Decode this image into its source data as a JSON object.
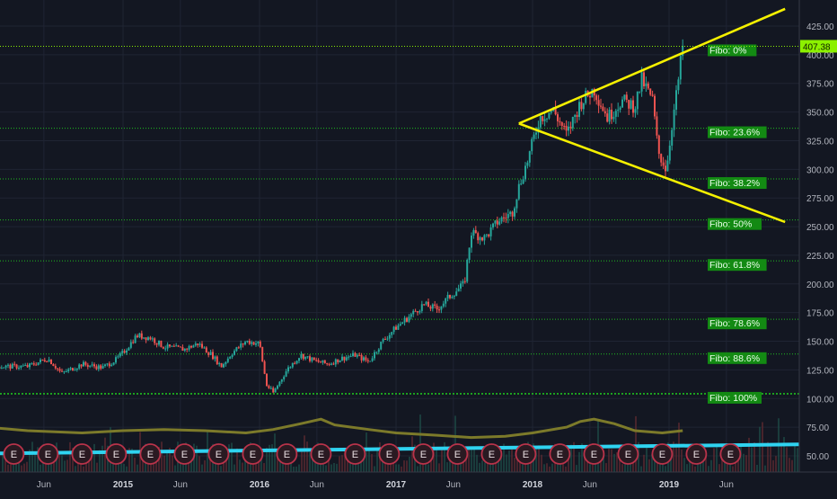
{
  "chart_data": {
    "type": "candlestick",
    "title": "",
    "xlabel": "",
    "ylabel": "",
    "x_tick_labels": [
      "Jun",
      "2015",
      "Jun",
      "2016",
      "Jun",
      "2017",
      "Jun",
      "2018",
      "Jun",
      "2019",
      "Jun"
    ],
    "y_tick_labels": [
      "425.00",
      "400.00",
      "375.00",
      "350.00",
      "325.00",
      "300.00",
      "275.00",
      "250.00",
      "225.00",
      "200.00",
      "175.00",
      "150.00",
      "125.00",
      "100.00",
      "75.00",
      "50.00"
    ],
    "ylim": [
      40,
      440
    ],
    "last_price_label": "407.38",
    "last_price": 407.38,
    "price_series": [
      [
        2014.3,
        128
      ],
      [
        2014.45,
        135
      ],
      [
        2014.55,
        122
      ],
      [
        2014.7,
        130
      ],
      [
        2014.85,
        127
      ],
      [
        2014.95,
        134
      ],
      [
        2015.0,
        140
      ],
      [
        2015.1,
        155
      ],
      [
        2015.2,
        153
      ],
      [
        2015.3,
        145
      ],
      [
        2015.45,
        143
      ],
      [
        2015.55,
        148
      ],
      [
        2015.65,
        138
      ],
      [
        2015.72,
        128
      ],
      [
        2015.8,
        140
      ],
      [
        2015.9,
        150
      ],
      [
        2016.0,
        148
      ],
      [
        2016.05,
        112
      ],
      [
        2016.1,
        105
      ],
      [
        2016.2,
        125
      ],
      [
        2016.3,
        138
      ],
      [
        2016.4,
        133
      ],
      [
        2016.5,
        130
      ],
      [
        2016.6,
        135
      ],
      [
        2016.7,
        138
      ],
      [
        2016.8,
        132
      ],
      [
        2016.9,
        150
      ],
      [
        2017.0,
        162
      ],
      [
        2017.1,
        172
      ],
      [
        2017.2,
        182
      ],
      [
        2017.3,
        178
      ],
      [
        2017.4,
        190
      ],
      [
        2017.5,
        200
      ],
      [
        2017.55,
        245
      ],
      [
        2017.65,
        240
      ],
      [
        2017.75,
        255
      ],
      [
        2017.85,
        262
      ],
      [
        2017.9,
        285
      ],
      [
        2017.97,
        310
      ],
      [
        2018.05,
        345
      ],
      [
        2018.15,
        352
      ],
      [
        2018.25,
        330
      ],
      [
        2018.35,
        358
      ],
      [
        2018.45,
        370
      ],
      [
        2018.55,
        345
      ],
      [
        2018.65,
        360
      ],
      [
        2018.75,
        355
      ],
      [
        2018.8,
        378
      ],
      [
        2018.88,
        360
      ],
      [
        2018.92,
        315
      ],
      [
        2018.98,
        300
      ],
      [
        2019.02,
        338
      ],
      [
        2019.06,
        370
      ],
      [
        2019.1,
        407.38
      ]
    ],
    "fibonacci_levels": [
      {
        "label": "Fibo:  0%",
        "value": 407.38
      },
      {
        "label": "Fibo: 23.6%",
        "value": 335.9
      },
      {
        "label": "Fibo: 38.2%",
        "value": 291.6
      },
      {
        "label": "Fibo:  50%",
        "value": 255.8
      },
      {
        "label": "Fibo: 61.8%",
        "value": 220.1
      },
      {
        "label": "Fibo: 78.6%",
        "value": 169.1
      },
      {
        "label": "Fibo: 88.6%",
        "value": 138.8
      },
      {
        "label": "Fibo: 100%",
        "value": 104.2
      }
    ],
    "trendlines": [
      {
        "name": "upper",
        "from": [
          2017.9,
          340
        ],
        "to": [
          2019.85,
          440
        ]
      },
      {
        "name": "lower",
        "from": [
          2017.9,
          340
        ],
        "to": [
          2019.85,
          254
        ]
      }
    ],
    "volume_ma": [
      [
        2014.0,
        75
      ],
      [
        2014.3,
        72
      ],
      [
        2014.7,
        70
      ],
      [
        2015.0,
        72
      ],
      [
        2015.3,
        73
      ],
      [
        2015.6,
        72
      ],
      [
        2015.9,
        70
      ],
      [
        2016.1,
        73
      ],
      [
        2016.3,
        78
      ],
      [
        2016.45,
        82
      ],
      [
        2016.55,
        77
      ],
      [
        2016.8,
        73
      ],
      [
        2017.0,
        70
      ],
      [
        2017.3,
        68
      ],
      [
        2017.55,
        66
      ],
      [
        2017.8,
        67
      ],
      [
        2018.0,
        70
      ],
      [
        2018.25,
        75
      ],
      [
        2018.35,
        80
      ],
      [
        2018.45,
        82
      ],
      [
        2018.6,
        78
      ],
      [
        2018.75,
        72
      ],
      [
        2018.95,
        70
      ],
      [
        2019.1,
        72
      ]
    ],
    "baseline_line": [
      [
        2014.0,
        52
      ],
      [
        2019.95,
        60
      ]
    ],
    "earnings_marker_label": "E",
    "earnings_markers": [
      2014.2,
      2014.45,
      2014.7,
      2014.95,
      2015.2,
      2015.45,
      2015.7,
      2015.95,
      2016.2,
      2016.45,
      2016.7,
      2016.95,
      2017.2,
      2017.45,
      2017.7,
      2017.95,
      2018.2,
      2018.45,
      2018.7,
      2018.95,
      2019.2,
      2019.45
    ],
    "colors": {
      "background": "#131722",
      "up": "#26a69a",
      "down": "#ef5350",
      "fibo": "#1fbd1f",
      "fibo_label_bg": "#138a13",
      "trendline": "#f5f000",
      "volume_ma": "#7c7a2a",
      "baseline": "#2fd3f0",
      "last_price": "#8cf000"
    }
  }
}
